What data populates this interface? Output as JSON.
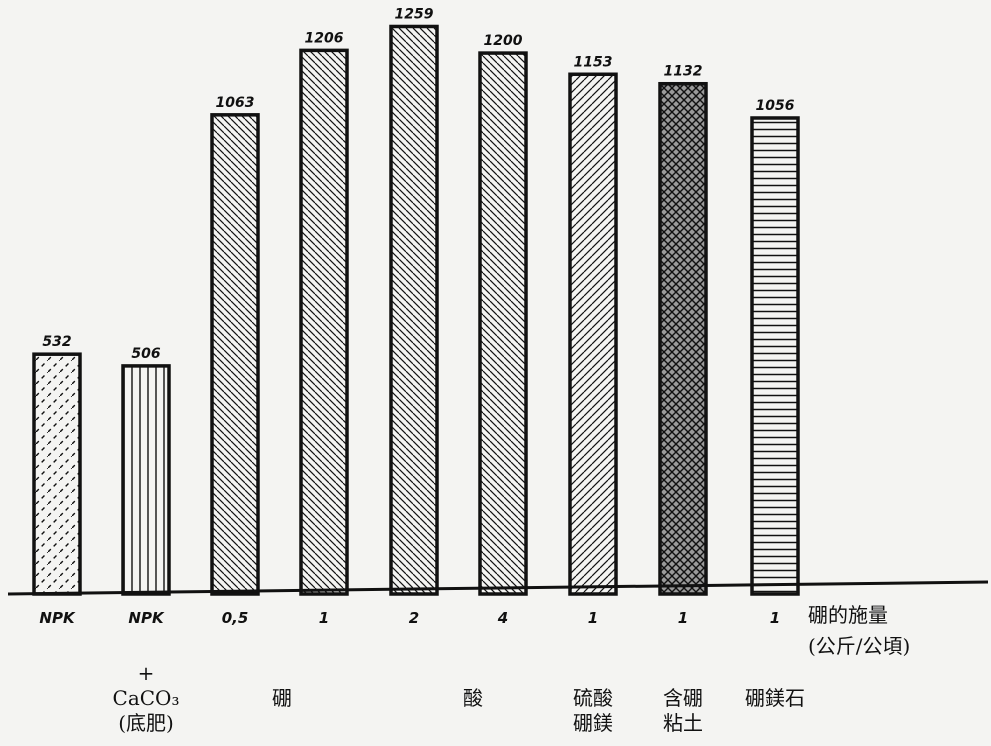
{
  "chart_data": {
    "type": "bar",
    "categories": [
      "NPK",
      "NPK",
      "0,5",
      "1",
      "2",
      "4",
      "1",
      "1",
      "1"
    ],
    "values": [
      532,
      506,
      1063,
      1206,
      1259,
      1200,
      1153,
      1132,
      1056
    ],
    "value_labels": [
      "532",
      "506",
      "1063",
      "1206",
      "1259",
      "1200",
      "1153",
      "1132",
      "1056"
    ],
    "patterns": [
      "dash-diagonal",
      "vertical",
      "back-diagonal",
      "back-diagonal",
      "back-diagonal",
      "back-diagonal",
      "forward-diagonal",
      "crosshatch",
      "horizontal"
    ],
    "ylim": [
      0,
      1300
    ],
    "grid": false,
    "legend": "none",
    "xlabel": [
      "硼的施量",
      "(公斤/公頃)"
    ],
    "group_labels": [
      [
        "+",
        "CaCO₃",
        "(底肥)"
      ],
      [
        "硼"
      ],
      [
        "酸"
      ],
      [
        "硫酸",
        "硼鎂"
      ],
      [
        "含硼",
        "粘土"
      ],
      [
        "硼鎂石"
      ]
    ],
    "title": "",
    "ylabel": ""
  },
  "colors": {
    "ink": "#111111",
    "paper": "#f4f4f2",
    "crosshatch_fill": "#9a9a9a"
  }
}
